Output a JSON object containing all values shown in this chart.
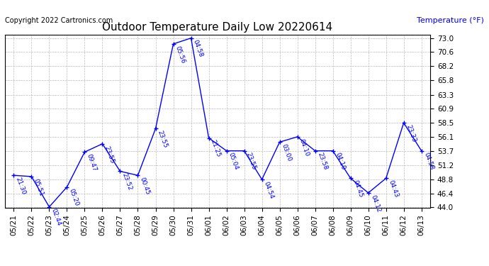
{
  "title": "Outdoor Temperature Daily Low 20220614",
  "ylabel_text": "Temperature (°F)",
  "copyright": "Copyright 2022 Cartronics.com",
  "line_color": "blue",
  "bg_color": "white",
  "grid_color": "#bbbbbb",
  "dates": [
    "05/21",
    "05/22",
    "05/23",
    "05/24",
    "05/25",
    "05/26",
    "05/27",
    "05/28",
    "05/29",
    "05/30",
    "05/31",
    "06/01",
    "06/02",
    "06/03",
    "06/04",
    "06/05",
    "06/06",
    "06/07",
    "06/08",
    "06/09",
    "06/10",
    "06/11",
    "06/12",
    "06/13"
  ],
  "values": [
    49.5,
    49.3,
    44.1,
    47.5,
    53.5,
    54.9,
    50.2,
    49.5,
    57.5,
    72.0,
    73.0,
    55.9,
    53.7,
    53.7,
    48.8,
    55.2,
    56.1,
    53.7,
    53.7,
    49.0,
    46.5,
    49.0,
    58.5,
    53.7
  ],
  "time_labels": [
    "21:30",
    "05:51",
    "02:44",
    "05:20",
    "09:47",
    "23:55",
    "23:52",
    "00:45",
    "23:55",
    "05:56",
    "04:58",
    "21:25",
    "05:04",
    "23:55",
    "04:54",
    "03:00",
    "04:10",
    "23:58",
    "04:10",
    "04:45",
    "04:12",
    "04:43",
    "23:33",
    "04:58"
  ],
  "ylim": [
    44.0,
    73.6
  ],
  "yticks": [
    44.0,
    46.4,
    48.8,
    51.2,
    53.7,
    56.1,
    58.5,
    60.9,
    63.3,
    65.8,
    68.2,
    70.6,
    73.0
  ],
  "title_fontsize": 11,
  "label_fontsize": 6.5,
  "tick_fontsize": 7.5,
  "copyright_fontsize": 7,
  "ylabel_fontsize": 8
}
